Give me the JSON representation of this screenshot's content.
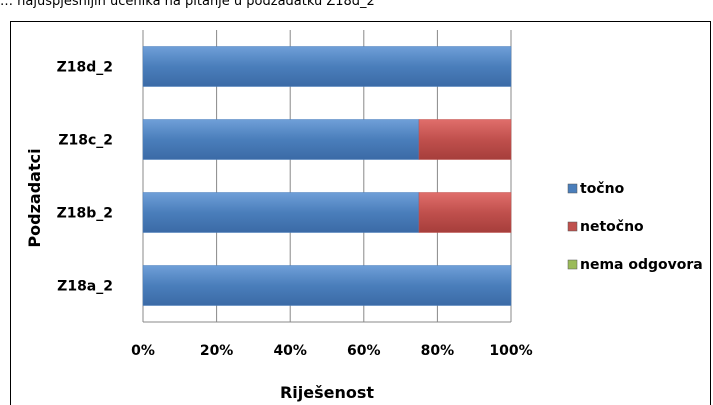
{
  "caption": "… najuspješnijih učenika na pitanje u podzadatku Z18d_2",
  "chart_data": {
    "type": "bar",
    "orientation": "horizontal",
    "stacked": "percent",
    "categories": [
      "Z18a_2",
      "Z18b_2",
      "Z18c_2",
      "Z18d_2"
    ],
    "series": [
      {
        "name": "točno",
        "color": "#4a7ebb",
        "values": [
          100,
          75,
          75,
          100
        ]
      },
      {
        "name": "netočno",
        "color": "#c0504d",
        "values": [
          0,
          25,
          25,
          0
        ]
      },
      {
        "name": "nema odgovora",
        "color": "#9bbb59",
        "values": [
          0,
          0,
          0,
          0
        ]
      }
    ],
    "xlim": [
      0,
      100
    ],
    "xticks": [
      "0%",
      "20%",
      "40%",
      "60%",
      "80%",
      "100%"
    ],
    "xlabel": "Riješenost",
    "ylabel": "Podzadatci",
    "grid": "vertical",
    "legend": "right"
  }
}
